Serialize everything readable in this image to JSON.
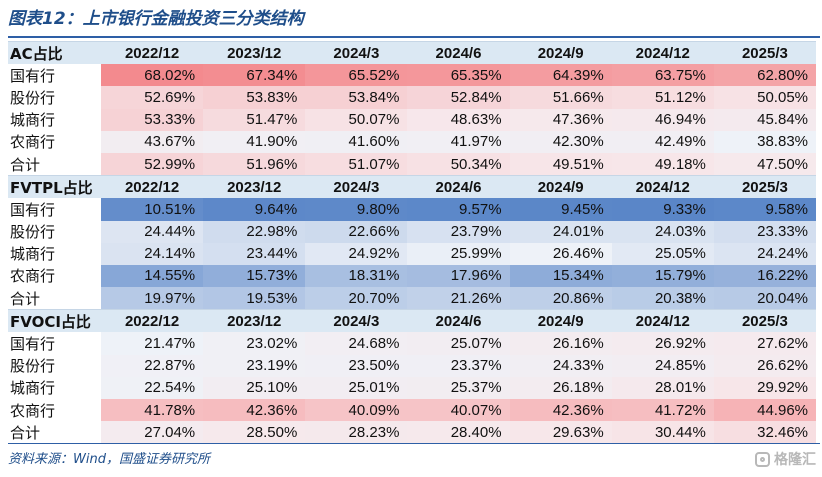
{
  "title": "图表12：上市银行金融投资三分类结构",
  "periods": [
    "2022/12",
    "2023/12",
    "2024/3",
    "2024/6",
    "2024/9",
    "2024/12",
    "2025/3"
  ],
  "sections": [
    {
      "label": "AC占比",
      "rows": [
        {
          "bank": "国有行",
          "values": [
            "68.02%",
            "67.34%",
            "65.52%",
            "65.35%",
            "64.39%",
            "63.75%",
            "62.80%"
          ]
        },
        {
          "bank": "股份行",
          "values": [
            "52.69%",
            "53.83%",
            "53.84%",
            "52.84%",
            "51.66%",
            "51.12%",
            "50.05%"
          ]
        },
        {
          "bank": "城商行",
          "values": [
            "53.33%",
            "51.47%",
            "50.07%",
            "48.63%",
            "47.36%",
            "46.94%",
            "45.84%"
          ]
        },
        {
          "bank": "农商行",
          "values": [
            "43.67%",
            "41.90%",
            "41.60%",
            "41.97%",
            "42.30%",
            "42.49%",
            "38.83%"
          ]
        },
        {
          "bank": "合计",
          "values": [
            "52.99%",
            "51.96%",
            "51.07%",
            "50.34%",
            "49.51%",
            "49.18%",
            "47.50%"
          ]
        }
      ]
    },
    {
      "label": "FVTPL占比",
      "rows": [
        {
          "bank": "国有行",
          "values": [
            "10.51%",
            "9.64%",
            "9.80%",
            "9.57%",
            "9.45%",
            "9.33%",
            "9.58%"
          ]
        },
        {
          "bank": "股份行",
          "values": [
            "24.44%",
            "22.98%",
            "22.66%",
            "23.79%",
            "24.01%",
            "24.03%",
            "23.33%"
          ]
        },
        {
          "bank": "城商行",
          "values": [
            "24.14%",
            "23.44%",
            "24.92%",
            "25.99%",
            "26.46%",
            "25.05%",
            "24.24%"
          ]
        },
        {
          "bank": "农商行",
          "values": [
            "14.55%",
            "15.73%",
            "18.31%",
            "17.96%",
            "15.34%",
            "15.79%",
            "16.22%"
          ]
        },
        {
          "bank": "合计",
          "values": [
            "19.97%",
            "19.53%",
            "20.70%",
            "21.26%",
            "20.86%",
            "20.38%",
            "20.04%"
          ]
        }
      ]
    },
    {
      "label": "FVOCI占比",
      "rows": [
        {
          "bank": "国有行",
          "values": [
            "21.47%",
            "23.02%",
            "24.68%",
            "25.07%",
            "26.16%",
            "26.92%",
            "27.62%"
          ]
        },
        {
          "bank": "股份行",
          "values": [
            "22.87%",
            "23.19%",
            "23.50%",
            "23.37%",
            "24.33%",
            "24.85%",
            "26.62%"
          ]
        },
        {
          "bank": "城商行",
          "values": [
            "22.54%",
            "25.10%",
            "25.01%",
            "25.37%",
            "26.18%",
            "28.01%",
            "29.92%"
          ]
        },
        {
          "bank": "农商行",
          "values": [
            "41.78%",
            "42.36%",
            "40.09%",
            "40.07%",
            "42.36%",
            "41.72%",
            "44.96%"
          ]
        },
        {
          "bank": "合计",
          "values": [
            "27.04%",
            "28.50%",
            "28.23%",
            "28.40%",
            "29.63%",
            "30.44%",
            "32.46%"
          ]
        }
      ]
    }
  ],
  "source": "资料来源：Wind，国盛证券研究所",
  "watermark": "格隆汇"
}
